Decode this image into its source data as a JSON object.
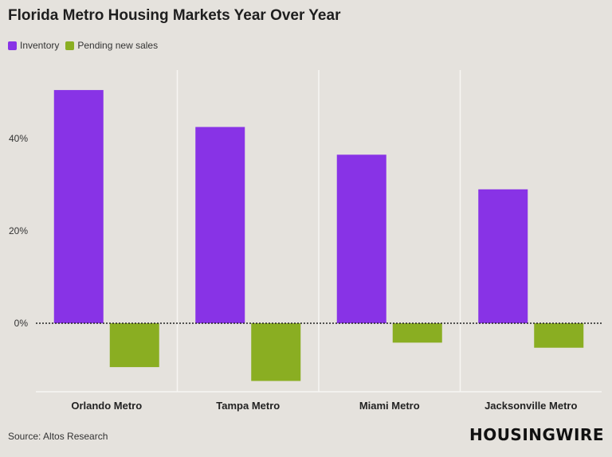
{
  "title": "Florida Metro Housing Markets Year Over Year",
  "source": "Source: Altos Research",
  "logo": "HOUSINGWIRE",
  "colors": {
    "inventory": "#8833e6",
    "pending": "#8aae22"
  },
  "chart_data": {
    "type": "bar",
    "categories": [
      "Orlando Metro",
      "Tampa Metro",
      "Miami Metro",
      "Jacksonville Metro"
    ],
    "series": [
      {
        "name": "Inventory",
        "values": [
          50.5,
          42.5,
          36.5,
          29.0
        ]
      },
      {
        "name": "Pending new sales",
        "values": [
          -9.5,
          -12.5,
          -4.2,
          -5.3
        ]
      }
    ],
    "y_ticks": [
      0,
      20,
      40
    ],
    "y_tick_labels": [
      "0%",
      "20%",
      "40%"
    ],
    "ylim": [
      -15,
      55
    ],
    "legend": "top-left",
    "grid": "vertical"
  }
}
